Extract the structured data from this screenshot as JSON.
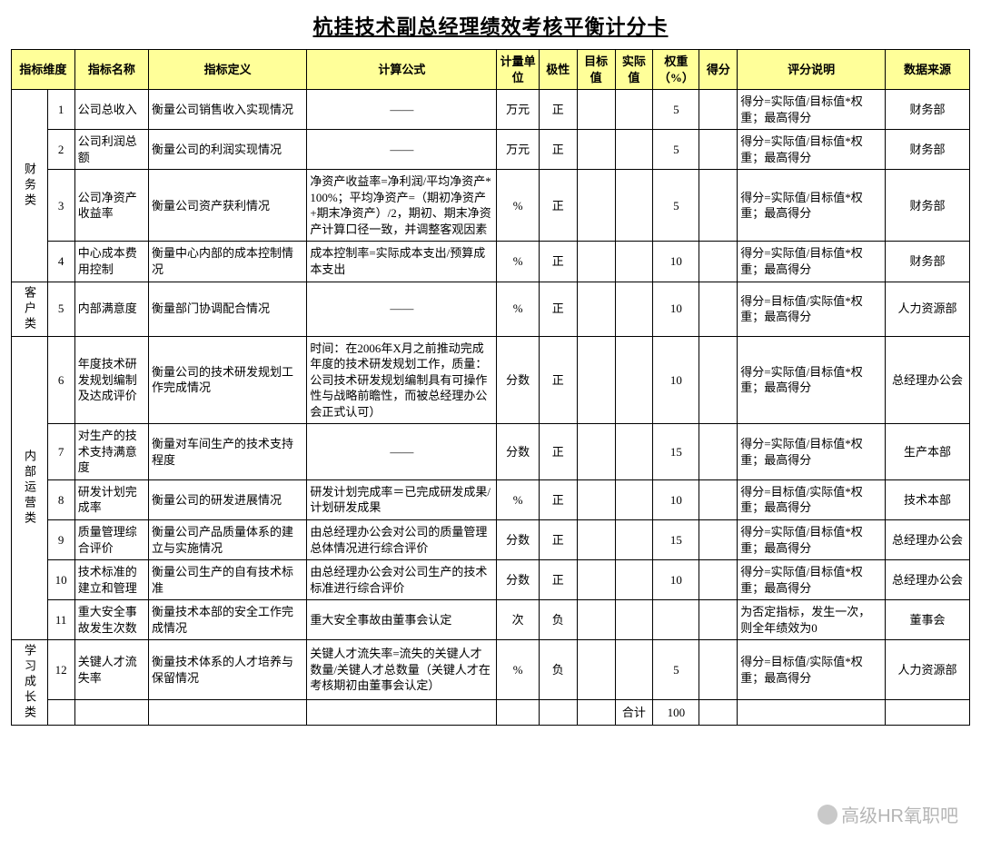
{
  "title": "杭挂技术副总经理绩效考核平衡计分卡",
  "headers": {
    "dim": "指标维度",
    "name": "指标名称",
    "def": "指标定义",
    "formula": "计算公式",
    "unit": "计量单位",
    "polarity": "极性",
    "target": "目标值",
    "actual": "实际值",
    "weight": "权重（%）",
    "score": "得分",
    "explain": "评分说明",
    "source": "数据来源"
  },
  "cats": {
    "fin": "财务类",
    "cust": "客户类",
    "ops": "内部运营类",
    "learn": "学习成长类"
  },
  "rows": [
    {
      "n": "1",
      "name": "公司总收入",
      "def": "衡量公司销售收入实现情况",
      "formula": "——",
      "unit": "万元",
      "pol": "正",
      "tv": "",
      "av": "",
      "wt": "5",
      "sc": "",
      "exp": "得分=实际值/目标值*权重；最高得分",
      "src": "财务部"
    },
    {
      "n": "2",
      "name": "公司利润总额",
      "def": "衡量公司的利润实现情况",
      "formula": "——",
      "unit": "万元",
      "pol": "正",
      "tv": "",
      "av": "",
      "wt": "5",
      "sc": "",
      "exp": "得分=实际值/目标值*权重；最高得分",
      "src": "财务部"
    },
    {
      "n": "3",
      "name": "公司净资产收益率",
      "def": "衡量公司资产获利情况",
      "formula": "净资产收益率=净利润/平均净资产*100%；平均净资产=（期初净资产+期末净资产）/2，期初、期末净资产计算口径一致，并调整客观因素",
      "unit": "%",
      "pol": "正",
      "tv": "",
      "av": "",
      "wt": "5",
      "sc": "",
      "exp": "得分=实际值/目标值*权重；最高得分",
      "src": "财务部"
    },
    {
      "n": "4",
      "name": "中心成本费用控制",
      "def": "衡量中心内部的成本控制情况",
      "formula": "成本控制率=实际成本支出/预算成本支出",
      "unit": "%",
      "pol": "正",
      "tv": "",
      "av": "",
      "wt": "10",
      "sc": "",
      "exp": "得分=实际值/目标值*权重；最高得分",
      "src": "财务部"
    },
    {
      "n": "5",
      "name": "内部满意度",
      "def": "衡量部门协调配合情况",
      "formula": "——",
      "unit": "%",
      "pol": "正",
      "tv": "",
      "av": "",
      "wt": "10",
      "sc": "",
      "exp": "得分=目标值/实际值*权重；最高得分",
      "src": "人力资源部"
    },
    {
      "n": "6",
      "name": "年度技术研发规划编制及达成评价",
      "def": "衡量公司的技术研发规划工作完成情况",
      "formula": "时间：在2006年X月之前推动完成年度的技术研发规划工作，质量：公司技术研发规划编制具有可操作性与战略前瞻性，而被总经理办公会正式认可）",
      "unit": "分数",
      "pol": "正",
      "tv": "",
      "av": "",
      "wt": "10",
      "sc": "",
      "exp": "得分=实际值/目标值*权重；最高得分",
      "src": "总经理办公会"
    },
    {
      "n": "7",
      "name": "对生产的技术支持满意度",
      "def": "衡量对车间生产的技术支持程度",
      "formula": "——",
      "unit": "分数",
      "pol": "正",
      "tv": "",
      "av": "",
      "wt": "15",
      "sc": "",
      "exp": "得分=实际值/目标值*权重；最高得分",
      "src": "生产本部"
    },
    {
      "n": "8",
      "name": "研发计划完成率",
      "def": "衡量公司的研发进展情况",
      "formula": "研发计划完成率＝已完成研发成果/计划研发成果",
      "unit": "%",
      "pol": "正",
      "tv": "",
      "av": "",
      "wt": "10",
      "sc": "",
      "exp": "得分=目标值/实际值*权重；最高得分",
      "src": "技术本部"
    },
    {
      "n": "9",
      "name": "质量管理综合评价",
      "def": "衡量公司产品质量体系的建立与实施情况",
      "formula": "由总经理办公会对公司的质量管理总体情况进行综合评价",
      "unit": "分数",
      "pol": "正",
      "tv": "",
      "av": "",
      "wt": "15",
      "sc": "",
      "exp": "得分=实际值/目标值*权重；最高得分",
      "src": "总经理办公会"
    },
    {
      "n": "10",
      "name": "技术标准的建立和管理",
      "def": "衡量公司生产的自有技术标准",
      "formula": "由总经理办公会对公司生产的技术标准进行综合评价",
      "unit": "分数",
      "pol": "正",
      "tv": "",
      "av": "",
      "wt": "10",
      "sc": "",
      "exp": "得分=实际值/目标值*权重；最高得分",
      "src": "总经理办公会"
    },
    {
      "n": "11",
      "name": "重大安全事故发生次数",
      "def": "衡量技术本部的安全工作完成情况",
      "formula": "重大安全事故由董事会认定",
      "unit": "次",
      "pol": "负",
      "tv": "",
      "av": "",
      "wt": "",
      "sc": "",
      "exp": "为否定指标，发生一次，则全年绩效为0",
      "src": "董事会"
    },
    {
      "n": "12",
      "name": "关键人才流失率",
      "def": "衡量技术体系的人才培养与保留情况",
      "formula": "关键人才流失率=流失的关键人才数量/关键人才总数量（关键人才在考核期初由董事会认定）",
      "unit": "%",
      "pol": "负",
      "tv": "",
      "av": "",
      "wt": "5",
      "sc": "",
      "exp": "得分=目标值/实际值*权重；最高得分",
      "src": "人力资源部"
    }
  ],
  "total": {
    "label": "合计",
    "value": "100"
  },
  "watermark": "高级HR氧职吧"
}
